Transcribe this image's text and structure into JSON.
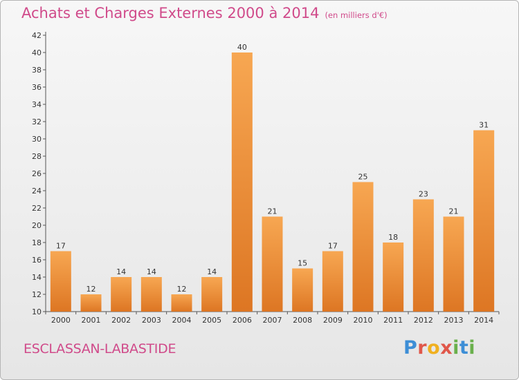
{
  "header": {
    "title": "Achats et Charges Externes 2000 à 2014",
    "unit": "(en milliers d'€)"
  },
  "footer": {
    "commune": "ESCLASSAN-LABASTIDE",
    "logo": [
      "P",
      "r",
      "o",
      "x",
      "i",
      "t",
      "i"
    ]
  },
  "colors": {
    "title": "#d04a8a",
    "bar_top": "#f7a752",
    "bar_bottom": "#dd7623",
    "logo": [
      "#3d8ed6",
      "#e0574a",
      "#f0b020",
      "#e0574a",
      "#6ab04c",
      "#3d8ed6",
      "#6ab04c"
    ]
  },
  "chart_data": {
    "type": "bar",
    "categories": [
      "2000",
      "2001",
      "2002",
      "2003",
      "2004",
      "2005",
      "2006",
      "2007",
      "2008",
      "2009",
      "2010",
      "2011",
      "2012",
      "2013",
      "2014"
    ],
    "values": [
      17,
      12,
      14,
      14,
      12,
      14,
      40,
      21,
      15,
      17,
      25,
      18,
      23,
      21,
      31
    ],
    "title": "Achats et Charges Externes 2000 à 2014",
    "ylim": [
      10,
      42
    ],
    "yticks": [
      10,
      12,
      14,
      16,
      18,
      20,
      22,
      24,
      26,
      28,
      30,
      32,
      34,
      36,
      38,
      40,
      42
    ],
    "grid": false,
    "legend": "none"
  }
}
